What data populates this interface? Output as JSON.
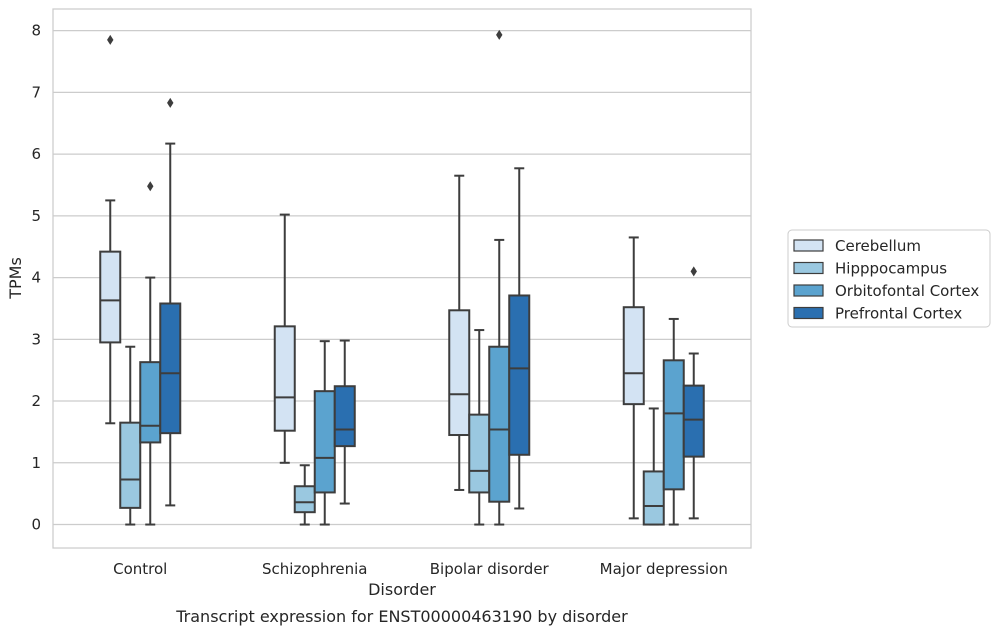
{
  "chart_data": {
    "type": "box",
    "caption": "Transcript expression for ENST00000463190 by disorder",
    "xlabel": "Disorder",
    "ylabel": "TPMs",
    "ylim": [
      -0.38,
      8.35
    ],
    "yticks": [
      0,
      1,
      2,
      3,
      4,
      5,
      6,
      7,
      8
    ],
    "grid": "horizontal",
    "legend_position": "right",
    "categories": [
      "Control",
      "Schizophrenia",
      "Bipolar disorder",
      "Major depression"
    ],
    "series": [
      {
        "name": "Cerebellum",
        "color": "#d3e3f3",
        "boxes": [
          {
            "whisker_low": 1.64,
            "q1": 2.95,
            "median": 3.63,
            "q3": 4.42,
            "whisker_high": 5.25,
            "outliers": [
              7.85
            ]
          },
          {
            "whisker_low": 1.0,
            "q1": 1.52,
            "median": 2.06,
            "q3": 3.21,
            "whisker_high": 5.02,
            "outliers": []
          },
          {
            "whisker_low": 0.56,
            "q1": 1.45,
            "median": 2.11,
            "q3": 3.47,
            "whisker_high": 5.65,
            "outliers": []
          },
          {
            "whisker_low": 0.1,
            "q1": 1.95,
            "median": 2.45,
            "q3": 3.52,
            "whisker_high": 4.65,
            "outliers": []
          }
        ]
      },
      {
        "name": "Hipppocampus",
        "color": "#9ac8e0",
        "boxes": [
          {
            "whisker_low": 0.0,
            "q1": 0.27,
            "median": 0.73,
            "q3": 1.65,
            "whisker_high": 2.88,
            "outliers": []
          },
          {
            "whisker_low": 0.0,
            "q1": 0.2,
            "median": 0.36,
            "q3": 0.62,
            "whisker_high": 0.96,
            "outliers": []
          },
          {
            "whisker_low": 0.0,
            "q1": 0.52,
            "median": 0.87,
            "q3": 1.78,
            "whisker_high": 3.15,
            "outliers": []
          },
          {
            "whisker_low": 0.0,
            "q1": 0.0,
            "median": 0.3,
            "q3": 0.86,
            "whisker_high": 1.88,
            "outliers": []
          }
        ]
      },
      {
        "name": "Orbitofontal Cortex",
        "color": "#5ba3cf",
        "boxes": [
          {
            "whisker_low": 0.0,
            "q1": 1.33,
            "median": 1.6,
            "q3": 2.63,
            "whisker_high": 4.0,
            "outliers": [
              5.48
            ]
          },
          {
            "whisker_low": 0.0,
            "q1": 0.52,
            "median": 1.08,
            "q3": 2.16,
            "whisker_high": 2.97,
            "outliers": []
          },
          {
            "whisker_low": 0.0,
            "q1": 0.37,
            "median": 1.54,
            "q3": 2.88,
            "whisker_high": 4.61,
            "outliers": [
              7.93
            ]
          },
          {
            "whisker_low": 0.0,
            "q1": 0.57,
            "median": 1.8,
            "q3": 2.66,
            "whisker_high": 3.33,
            "outliers": []
          }
        ]
      },
      {
        "name": "Prefrontal Cortex",
        "color": "#2a6fb0",
        "boxes": [
          {
            "whisker_low": 0.31,
            "q1": 1.48,
            "median": 2.45,
            "q3": 3.58,
            "whisker_high": 6.17,
            "outliers": [
              6.83
            ]
          },
          {
            "whisker_low": 0.34,
            "q1": 1.27,
            "median": 1.54,
            "q3": 2.24,
            "whisker_high": 2.98,
            "outliers": []
          },
          {
            "whisker_low": 0.26,
            "q1": 1.13,
            "median": 2.53,
            "q3": 3.71,
            "whisker_high": 5.77,
            "outliers": []
          },
          {
            "whisker_low": 0.1,
            "q1": 1.1,
            "median": 1.7,
            "q3": 2.25,
            "whisker_high": 2.77,
            "outliers": [
              4.1
            ]
          }
        ]
      }
    ]
  }
}
